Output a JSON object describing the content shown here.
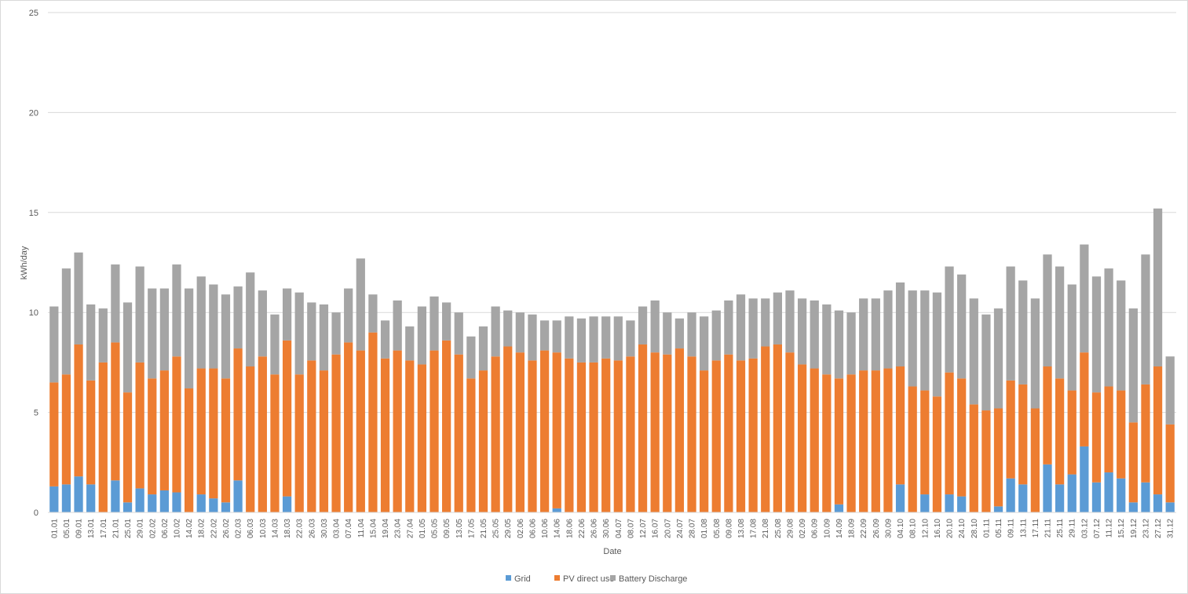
{
  "chart_data": {
    "type": "bar",
    "stacked": true,
    "title": "",
    "xlabel": "Date",
    "ylabel": "kWh/day",
    "ylim": [
      0,
      25
    ],
    "yticks": [
      0,
      5,
      10,
      15,
      20,
      25
    ],
    "grid": true,
    "legend_position": "bottom",
    "x_tick_labels": [
      "01.01",
      "05.01",
      "09.01",
      "13.01",
      "17.01",
      "21.01",
      "25.01",
      "29.01",
      "02.02",
      "06.02",
      "10.02",
      "14.02",
      "18.02",
      "22.02",
      "26.02",
      "02.03",
      "06.03",
      "10.03",
      "14.03",
      "18.03",
      "22.03",
      "26.03",
      "30.03",
      "03.04",
      "07.04",
      "11.04",
      "15.04",
      "19.04",
      "23.04",
      "27.04",
      "01.05",
      "05.05",
      "09.05",
      "13.05",
      "17.05",
      "21.05",
      "25.05",
      "29.05",
      "02.06",
      "06.06",
      "10.06",
      "14.06",
      "18.06",
      "22.06",
      "26.06",
      "30.06",
      "04.07",
      "08.07",
      "12.07",
      "16.07",
      "20.07",
      "24.07",
      "28.07",
      "01.08",
      "05.08",
      "09.08",
      "13.08",
      "17.08",
      "21.08",
      "25.08",
      "29.08",
      "02.09",
      "06.09",
      "10.09",
      "14.09",
      "18.09",
      "22.09",
      "26.09",
      "30.09",
      "04.10",
      "08.10",
      "12.10",
      "16.10",
      "20.10",
      "24.10",
      "28.10",
      "01.11",
      "05.11",
      "09.11",
      "13.11",
      "17.11",
      "21.11",
      "25.11",
      "29.11",
      "03.12",
      "07.12",
      "11.12",
      "15.12",
      "19.12",
      "23.12",
      "27.12",
      "31.12"
    ],
    "categories": [
      "01.01",
      "05.01",
      "09.01",
      "13.01",
      "17.01",
      "21.01",
      "25.01",
      "29.01",
      "02.02",
      "06.02",
      "10.02",
      "14.02",
      "18.02",
      "22.02",
      "26.02",
      "02.03",
      "06.03",
      "10.03",
      "14.03",
      "18.03",
      "22.03",
      "26.03",
      "30.03",
      "03.04",
      "07.04",
      "11.04",
      "15.04",
      "19.04",
      "23.04",
      "27.04",
      "01.05",
      "05.05",
      "09.05",
      "13.05",
      "17.05",
      "21.05",
      "25.05",
      "29.05",
      "02.06",
      "06.06",
      "10.06",
      "14.06",
      "18.06",
      "22.06",
      "26.06",
      "30.06",
      "04.07",
      "08.07",
      "12.07",
      "16.07",
      "20.07",
      "24.07",
      "28.07",
      "01.08",
      "05.08",
      "09.08",
      "13.08",
      "17.08",
      "21.08",
      "25.08",
      "29.08",
      "02.09",
      "06.09",
      "10.09",
      "14.09",
      "18.09",
      "22.09",
      "26.09",
      "30.09",
      "04.10",
      "08.10",
      "12.10",
      "16.10",
      "20.10",
      "24.10",
      "28.10",
      "01.11",
      "05.11",
      "09.11",
      "13.11",
      "17.11",
      "21.11",
      "25.11",
      "29.11",
      "03.12",
      "07.12",
      "11.12",
      "15.12",
      "19.12",
      "23.12",
      "27.12",
      "31.12"
    ],
    "series": [
      {
        "name": "Grid",
        "color": "#5b9bd5",
        "values": [
          1.3,
          1.4,
          1.8,
          1.4,
          0.0,
          1.6,
          0.5,
          1.2,
          0.9,
          1.1,
          1.0,
          0.0,
          0.9,
          0.7,
          0.5,
          1.6,
          0.0,
          0.0,
          0.0,
          0.8,
          0.0,
          0.0,
          0.0,
          0.0,
          0.0,
          0.0,
          0.0,
          0.0,
          0.0,
          0.0,
          0.0,
          0.0,
          0.0,
          0.0,
          0.0,
          0.0,
          0.0,
          0.0,
          0.0,
          0.0,
          0.0,
          0.2,
          0.0,
          0.0,
          0.0,
          0.0,
          0.0,
          0.0,
          0.0,
          0.0,
          0.0,
          0.0,
          0.0,
          0.0,
          0.0,
          0.0,
          0.0,
          0.0,
          0.0,
          0.0,
          0.0,
          0.0,
          0.0,
          0.0,
          0.4,
          0.0,
          0.0,
          0.0,
          0.0,
          1.4,
          0.0,
          0.9,
          0.0,
          0.9,
          0.8,
          0.0,
          0.0,
          0.3,
          1.7,
          1.4,
          0.0,
          2.4,
          1.4,
          1.9,
          3.3,
          1.5,
          2.0,
          1.7,
          0.5,
          1.5,
          0.9,
          0.5
        ]
      },
      {
        "name": "PV direct use",
        "color": "#ed7d31",
        "values": [
          5.2,
          5.5,
          6.6,
          5.2,
          7.5,
          6.9,
          5.5,
          6.3,
          5.8,
          6.0,
          6.8,
          6.2,
          6.3,
          6.5,
          6.2,
          6.6,
          7.3,
          7.8,
          6.9,
          7.8,
          6.9,
          7.6,
          7.1,
          7.9,
          8.5,
          8.1,
          9.0,
          7.7,
          8.1,
          7.6,
          7.4,
          8.1,
          8.6,
          7.9,
          6.7,
          7.1,
          7.8,
          8.3,
          8.0,
          7.6,
          8.1,
          7.8,
          7.7,
          7.5,
          7.5,
          7.7,
          7.6,
          7.8,
          8.4,
          8.0,
          7.9,
          8.2,
          7.8,
          7.1,
          7.6,
          7.9,
          7.6,
          7.7,
          8.3,
          8.4,
          8.0,
          7.4,
          7.2,
          6.9,
          6.3,
          6.9,
          7.1,
          7.1,
          7.2,
          5.9,
          6.3,
          5.2,
          5.8,
          6.1,
          5.9,
          5.4,
          5.1,
          4.9,
          4.9,
          5.0,
          5.2,
          4.9,
          5.3,
          4.2,
          4.7,
          4.5,
          4.3,
          4.4,
          4.0,
          4.9,
          6.4,
          3.9
        ]
      },
      {
        "name": "Battery Discharge",
        "color": "#a5a5a5",
        "values": [
          3.8,
          5.3,
          4.6,
          3.8,
          2.7,
          3.9,
          4.5,
          4.8,
          4.5,
          4.1,
          4.6,
          5.0,
          4.6,
          4.2,
          4.2,
          3.1,
          4.7,
          3.3,
          3.0,
          2.6,
          4.1,
          2.9,
          3.3,
          2.1,
          2.7,
          4.6,
          1.9,
          1.9,
          2.5,
          1.7,
          2.9,
          2.7,
          1.9,
          2.1,
          2.1,
          2.2,
          2.5,
          1.8,
          2.0,
          2.3,
          1.5,
          1.6,
          2.1,
          2.2,
          2.3,
          2.1,
          2.2,
          1.8,
          1.9,
          2.6,
          2.1,
          1.5,
          2.2,
          2.7,
          2.5,
          2.7,
          3.3,
          3.0,
          2.4,
          2.6,
          3.1,
          3.3,
          3.4,
          3.5,
          3.4,
          3.1,
          3.6,
          3.6,
          3.9,
          4.2,
          4.8,
          5.0,
          5.2,
          5.3,
          5.2,
          5.3,
          4.8,
          5.0,
          5.7,
          5.2,
          5.5,
          5.6,
          5.6,
          5.3,
          5.4,
          5.8,
          5.9,
          5.5,
          5.7,
          6.5,
          7.9,
          3.4
        ]
      }
    ]
  }
}
